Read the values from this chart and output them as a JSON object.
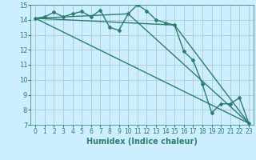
{
  "xlabel": "Humidex (Indice chaleur)",
  "ylabel": "",
  "background_color": "#cceeff",
  "grid_color": "#aacccc",
  "line_color": "#2d7d6e",
  "xlim": [
    -0.5,
    23.5
  ],
  "ylim": [
    7,
    15
  ],
  "xticks": [
    0,
    1,
    2,
    3,
    4,
    5,
    6,
    7,
    8,
    9,
    10,
    11,
    12,
    13,
    14,
    15,
    16,
    17,
    18,
    19,
    20,
    21,
    22,
    23
  ],
  "yticks": [
    7,
    8,
    9,
    10,
    11,
    12,
    13,
    14,
    15
  ],
  "series": [
    {
      "x": [
        0,
        1,
        2,
        3,
        4,
        5,
        6,
        7,
        8,
        9,
        10,
        11,
        12,
        13,
        14,
        15,
        16,
        17,
        18,
        19,
        20,
        21,
        22,
        23
      ],
      "y": [
        14.1,
        14.2,
        14.5,
        14.2,
        14.4,
        14.55,
        14.2,
        14.65,
        13.5,
        13.3,
        14.4,
        15.0,
        14.6,
        14.0,
        13.8,
        13.65,
        11.9,
        11.3,
        9.7,
        7.8,
        8.4,
        8.4,
        8.8,
        7.1
      ],
      "marker": "D",
      "markersize": 2.0,
      "linewidth": 1.0,
      "has_marker": true
    },
    {
      "x": [
        0,
        23
      ],
      "y": [
        14.1,
        7.1
      ],
      "markersize": 0,
      "linewidth": 1.0,
      "has_marker": false
    },
    {
      "x": [
        0,
        15,
        23
      ],
      "y": [
        14.1,
        13.65,
        7.1
      ],
      "markersize": 0,
      "linewidth": 1.0,
      "has_marker": false
    },
    {
      "x": [
        0,
        10,
        23
      ],
      "y": [
        14.1,
        14.4,
        7.1
      ],
      "markersize": 0,
      "linewidth": 1.0,
      "has_marker": false
    }
  ]
}
